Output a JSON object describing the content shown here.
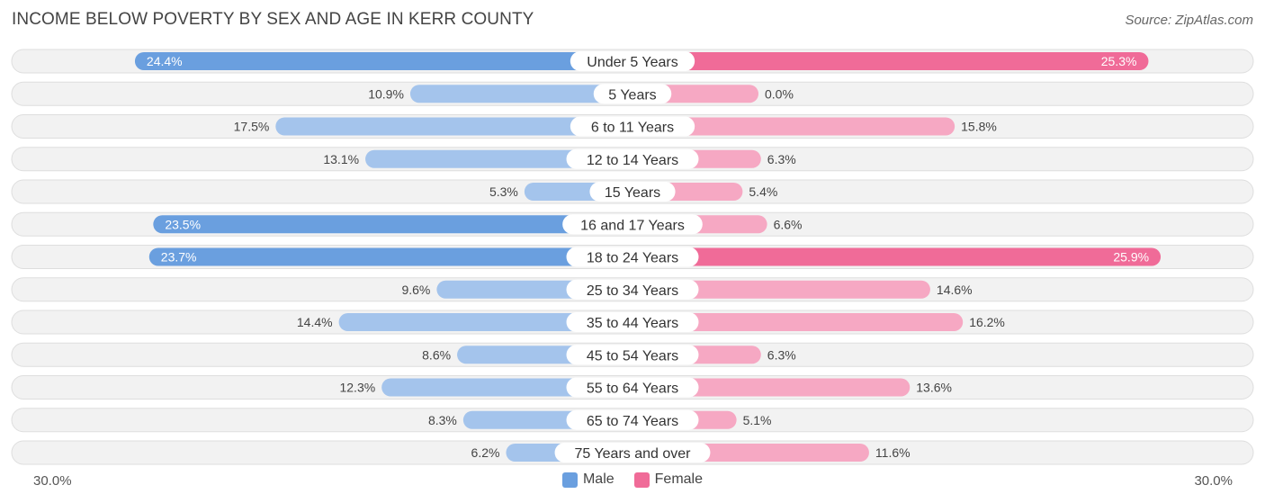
{
  "title": "INCOME BELOW POVERTY BY SEX AND AGE IN KERR COUNTY",
  "source": "Source: ZipAtlas.com",
  "colors": {
    "male_strong": "#6a9fdf",
    "male_light": "#a4c4ec",
    "female_strong": "#f06b98",
    "female_light": "#f6a8c3"
  },
  "legend": {
    "male": "Male",
    "female": "Female"
  },
  "axis": {
    "left_label": "30.0%",
    "right_label": "30.0%"
  },
  "chart_data": {
    "type": "bar",
    "orientation": "horizontal-diverging",
    "title": "INCOME BELOW POVERTY BY SEX AND AGE IN KERR COUNTY",
    "xlim": [
      -30,
      30
    ],
    "unit": "%",
    "categories": [
      "Under 5 Years",
      "5 Years",
      "6 to 11 Years",
      "12 to 14 Years",
      "15 Years",
      "16 and 17 Years",
      "18 to 24 Years",
      "25 to 34 Years",
      "35 to 44 Years",
      "45 to 54 Years",
      "55 to 64 Years",
      "65 to 74 Years",
      "75 Years and over"
    ],
    "series": [
      {
        "name": "Male",
        "values": [
          24.4,
          10.9,
          17.5,
          13.1,
          5.3,
          23.5,
          23.7,
          9.6,
          14.4,
          8.6,
          12.3,
          8.3,
          6.2
        ],
        "labels": [
          "24.4%",
          "10.9%",
          "17.5%",
          "13.1%",
          "5.3%",
          "23.5%",
          "23.7%",
          "9.6%",
          "14.4%",
          "8.6%",
          "12.3%",
          "8.3%",
          "6.2%"
        ]
      },
      {
        "name": "Female",
        "values": [
          25.3,
          0.0,
          15.8,
          6.3,
          5.4,
          6.6,
          25.9,
          14.6,
          16.2,
          6.3,
          13.6,
          5.1,
          11.6
        ],
        "labels": [
          "25.3%",
          "0.0%",
          "15.8%",
          "6.3%",
          "5.4%",
          "6.6%",
          "25.9%",
          "14.6%",
          "16.2%",
          "6.3%",
          "13.6%",
          "5.1%",
          "11.6%"
        ]
      }
    ]
  }
}
